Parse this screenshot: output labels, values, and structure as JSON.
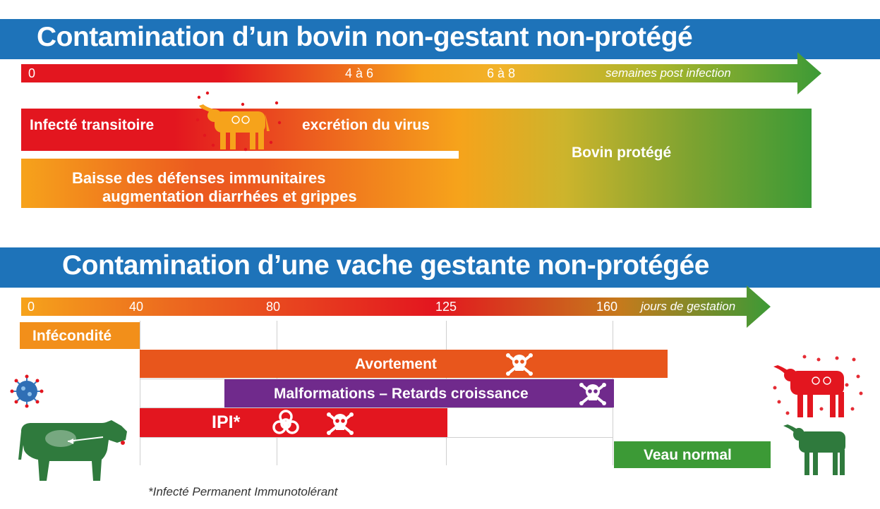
{
  "section1": {
    "title": "Contamination d’un bovin non-gestant non-protégé",
    "axis": {
      "ticks": [
        "0",
        "4 à 6",
        "6 à 8"
      ],
      "label": "semaines post infection"
    },
    "bars": {
      "infected": "Infecté transitoire",
      "excretion": "excrétion du virus",
      "protected": "Bovin protégé",
      "immunity_line1": "Baisse des défenses immunitaires",
      "immunity_line2": "augmentation diarrhées et grippes"
    }
  },
  "section2": {
    "title": "Contamination d’une vache gestante non-protégée",
    "axis": {
      "ticks": [
        "0",
        "40",
        "80",
        "125",
        "160"
      ],
      "label": "jours de gestation"
    },
    "bars": {
      "infecondite": "Infécondité",
      "avortement": "Avortement",
      "malformations": "Malformations – Retards croissance",
      "ipi": "IPI*",
      "veau": "Veau normal"
    },
    "footnote": "*Infecté Permanent Immunotolérant"
  },
  "icons": [
    "skull-crossbones-icon",
    "biohazard-icon",
    "virus-icon",
    "cow-icon"
  ],
  "colors": {
    "banner": "#1e73b9",
    "red": "#e3161f",
    "orange": "#e8561c",
    "yellow": "#f6a31b",
    "green": "#3c9a36",
    "purple": "#702a8c",
    "dark_green": "#2f7a3d"
  }
}
